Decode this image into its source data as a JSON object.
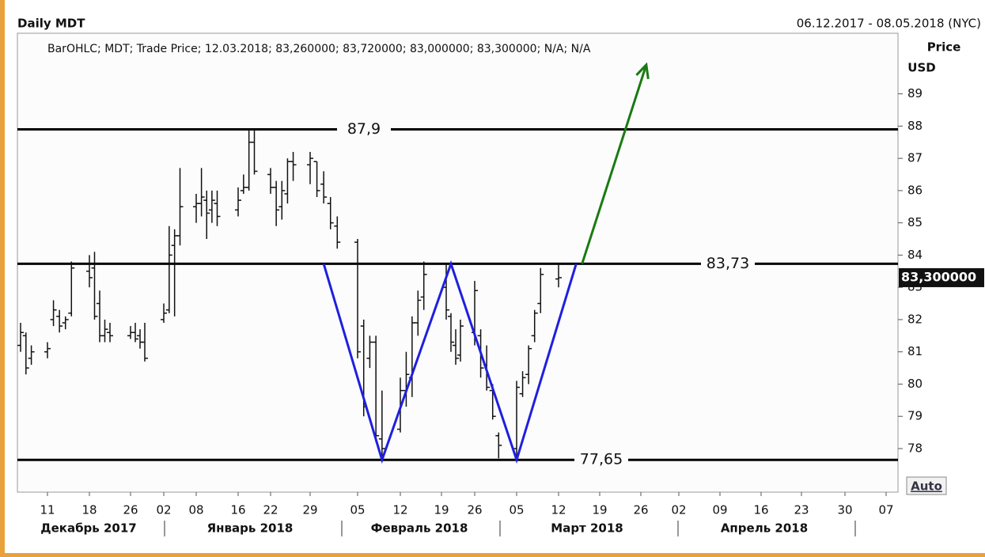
{
  "chart_data": {
    "type": "ohlc",
    "title": "Daily MDT",
    "subtitle": "06.12.2017 - 08.05.2018 (NYC)",
    "info": "BarOHLC; MDT; Trade Price; 12.03.2018; 83,260000; 83,720000; 83,000000; 83,300000; N/A; N/A",
    "ylabel": "Price",
    "yunit": "USD",
    "auto_button": "Auto",
    "color": "#111111",
    "x": [
      "2017-12-06",
      "2017-12-07",
      "2017-12-08",
      "2017-12-11",
      "2017-12-12",
      "2017-12-13",
      "2017-12-14",
      "2017-12-15",
      "2017-12-18",
      "2017-12-19",
      "2017-12-20",
      "2017-12-21",
      "2017-12-22",
      "2017-12-26",
      "2017-12-27",
      "2017-12-28",
      "2017-12-29",
      "2018-01-02",
      "2018-01-03",
      "2018-01-04",
      "2018-01-05",
      "2018-01-08",
      "2018-01-09",
      "2018-01-10",
      "2018-01-11",
      "2018-01-12",
      "2018-01-16",
      "2018-01-17",
      "2018-01-18",
      "2018-01-19",
      "2018-01-22",
      "2018-01-23",
      "2018-01-24",
      "2018-01-25",
      "2018-01-26",
      "2018-01-29",
      "2018-01-30",
      "2018-01-31",
      "2018-02-01",
      "2018-02-02",
      "2018-02-05",
      "2018-02-06",
      "2018-02-07",
      "2018-02-08",
      "2018-02-09",
      "2018-02-12",
      "2018-02-13",
      "2018-02-14",
      "2018-02-15",
      "2018-02-16",
      "2018-02-20",
      "2018-02-21",
      "2018-02-22",
      "2018-02-23",
      "2018-02-26",
      "2018-02-27",
      "2018-02-28",
      "2018-03-01",
      "2018-03-02",
      "2018-03-05",
      "2018-03-06",
      "2018-03-07",
      "2018-03-08",
      "2018-03-09",
      "2018-03-12"
    ],
    "open": [
      81.2,
      81.5,
      80.8,
      81.0,
      82.0,
      82.1,
      81.9,
      82.2,
      83.5,
      83.6,
      82.5,
      81.5,
      81.6,
      81.5,
      81.6,
      81.5,
      81.3,
      82.0,
      82.3,
      84.3,
      84.6,
      85.5,
      85.6,
      85.7,
      85.4,
      85.6,
      85.4,
      86.0,
      86.1,
      87.5,
      86.5,
      86.1,
      85.5,
      85.9,
      86.9,
      86.8,
      86.9,
      86.2,
      85.6,
      84.9,
      84.4,
      81.8,
      80.8,
      81.3,
      78.3,
      78.6,
      79.8,
      80.2,
      81.9,
      82.7,
      83.0,
      82.1,
      81.2,
      80.9,
      81.6,
      81.5,
      80.6,
      79.8,
      78.4,
      78.0,
      79.7,
      80.3,
      81.5,
      82.5,
      83.26
    ],
    "high": [
      81.9,
      81.6,
      81.2,
      81.3,
      82.6,
      82.3,
      82.1,
      83.8,
      84.0,
      84.1,
      82.9,
      82.0,
      81.9,
      81.8,
      81.9,
      81.7,
      81.9,
      82.5,
      84.9,
      84.8,
      86.7,
      85.9,
      86.7,
      86.0,
      86.0,
      86.0,
      86.1,
      86.5,
      87.9,
      87.9,
      86.7,
      86.3,
      86.3,
      87.0,
      87.2,
      87.2,
      86.9,
      86.6,
      85.8,
      85.2,
      84.5,
      82.0,
      81.5,
      81.5,
      79.8,
      80.2,
      81.0,
      82.1,
      82.9,
      83.8,
      83.7,
      82.2,
      81.7,
      82.0,
      83.2,
      81.7,
      81.2,
      80.0,
      78.5,
      80.1,
      80.4,
      81.2,
      82.3,
      83.6,
      83.72
    ],
    "low": [
      81.0,
      80.3,
      80.6,
      80.8,
      81.8,
      81.6,
      81.7,
      82.1,
      83.0,
      82.0,
      81.3,
      81.3,
      81.3,
      81.4,
      81.3,
      81.1,
      80.7,
      81.9,
      82.2,
      82.1,
      84.3,
      85.0,
      85.2,
      84.5,
      85.0,
      84.9,
      85.2,
      85.9,
      86.0,
      86.5,
      85.9,
      84.9,
      85.1,
      85.6,
      86.3,
      86.2,
      85.8,
      85.6,
      84.8,
      84.2,
      80.8,
      79.0,
      80.5,
      78.2,
      77.6,
      78.5,
      79.3,
      79.6,
      81.5,
      82.3,
      82.0,
      81.0,
      80.6,
      80.7,
      81.2,
      80.2,
      79.8,
      78.9,
      77.7,
      77.65,
      79.6,
      80.0,
      81.3,
      82.2,
      83.0
    ],
    "close": [
      81.6,
      80.5,
      81.0,
      81.1,
      82.3,
      81.8,
      82.0,
      83.6,
      83.3,
      82.1,
      81.5,
      81.7,
      81.5,
      81.6,
      81.4,
      81.3,
      80.8,
      82.2,
      84.0,
      84.6,
      85.5,
      85.6,
      85.8,
      85.3,
      85.7,
      85.2,
      85.7,
      86.1,
      87.5,
      86.6,
      86.1,
      85.4,
      86.0,
      86.9,
      86.8,
      87.0,
      86.0,
      85.8,
      85.0,
      84.4,
      81.0,
      79.3,
      81.3,
      78.4,
      78.0,
      79.8,
      80.3,
      81.9,
      82.6,
      83.4,
      82.3,
      81.3,
      80.8,
      81.8,
      82.9,
      80.5,
      79.9,
      79.0,
      78.1,
      79.9,
      80.2,
      81.1,
      82.2,
      83.4,
      83.3
    ],
    "xlim": [
      "2017-12-06",
      "2018-05-08"
    ],
    "xticks": [
      {
        "value": "2017-12-11",
        "label": "11"
      },
      {
        "value": "2017-12-18",
        "label": "18"
      },
      {
        "value": "2017-12-26",
        "label": "26"
      },
      {
        "value": "2018-01-02",
        "label": "02"
      },
      {
        "value": "2018-01-08",
        "label": "08"
      },
      {
        "value": "2018-01-16",
        "label": "16"
      },
      {
        "value": "2018-01-22",
        "label": "22"
      },
      {
        "value": "2018-01-29",
        "label": "29"
      },
      {
        "value": "2018-02-05",
        "label": "05"
      },
      {
        "value": "2018-02-12",
        "label": "12"
      },
      {
        "value": "2018-02-19",
        "label": "19"
      },
      {
        "value": "2018-02-26",
        "label": "26"
      },
      {
        "value": "2018-03-05",
        "label": "05"
      },
      {
        "value": "2018-03-12",
        "label": "12"
      },
      {
        "value": "2018-03-19",
        "label": "19"
      },
      {
        "value": "2018-03-26",
        "label": "26"
      },
      {
        "value": "2018-04-02",
        "label": "02"
      },
      {
        "value": "2018-04-09",
        "label": "09"
      },
      {
        "value": "2018-04-16",
        "label": "16"
      },
      {
        "value": "2018-04-23",
        "label": "23"
      },
      {
        "value": "2018-04-30",
        "label": "30"
      },
      {
        "value": "2018-05-07",
        "label": "07"
      }
    ],
    "months": [
      "Декабрь 2017",
      "Январь 2018",
      "Февраль 2018",
      "Март 2018",
      "Апрель 2018"
    ],
    "ylim": [
      76.65,
      90.88
    ],
    "yticks": [
      78,
      79,
      80,
      81,
      82,
      83,
      84,
      85,
      86,
      87,
      88,
      89
    ],
    "last_price": {
      "value": 83.3,
      "label": "83,300000"
    },
    "levels": [
      {
        "value": 87.9,
        "label": "87,9"
      },
      {
        "value": 83.73,
        "label": "83,73"
      },
      {
        "value": 77.65,
        "label": "77,65"
      }
    ],
    "pattern": {
      "color": "#1f1fe0",
      "x": [
        "2018-01-31",
        "2018-02-09",
        "2018-02-21",
        "2018-03-05",
        "2018-03-15"
      ],
      "y": [
        83.73,
        77.65,
        83.73,
        77.65,
        83.73
      ]
    },
    "arrow": {
      "color": "#1a7a12",
      "x": [
        "2018-03-16",
        "2018-03-27"
      ],
      "y": [
        83.73,
        89.9
      ]
    }
  }
}
